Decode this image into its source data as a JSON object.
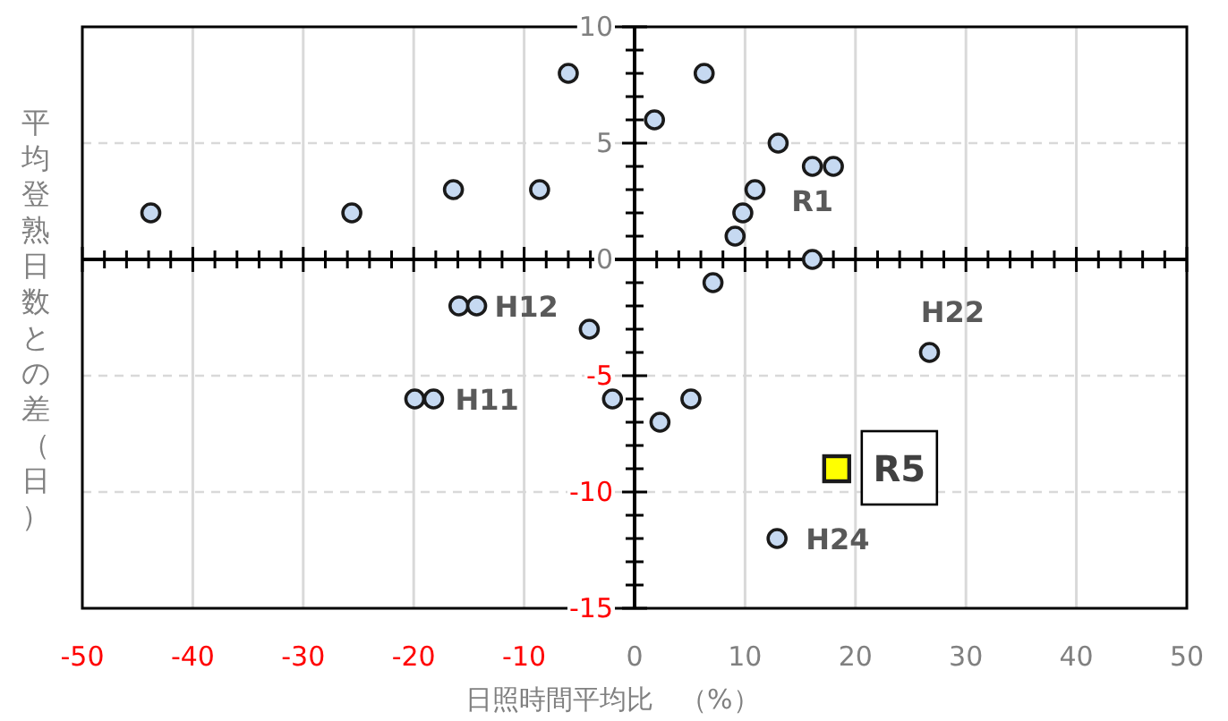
{
  "chart_data": {
    "type": "scatter",
    "xlabel": "日照時間平均比　（%）",
    "ylabel": "平均登熟日数との差（日）",
    "xlim": [
      -50,
      50
    ],
    "ylim": [
      -15,
      10
    ],
    "xticks": [
      -50,
      -40,
      -30,
      -20,
      -10,
      0,
      10,
      20,
      30,
      40,
      50
    ],
    "yticks": [
      -15,
      -10,
      -5,
      0,
      5,
      10
    ],
    "grid": true,
    "series": [
      {
        "color": "#c6d9f1",
        "marker": "circle",
        "x": [
          -43.8,
          -25.6,
          -16.4,
          -8.6,
          -6.0,
          6.3,
          1.8,
          13.0,
          16.1,
          18.0,
          10.9,
          9.8,
          9.1,
          16.1,
          7.1,
          -15.9,
          -14.3,
          -4.1,
          -19.9,
          -18.2,
          -2.0,
          2.3,
          5.1,
          26.7,
          12.9
        ],
        "values": [
          2,
          2,
          3,
          3,
          8,
          8,
          6,
          5,
          4,
          4,
          3,
          2,
          1,
          0,
          -1,
          -2,
          -2,
          -3,
          -6,
          -6,
          -6,
          -7,
          -6,
          -4,
          -12
        ]
      },
      {
        "name": "R5",
        "color": "#ffff00",
        "marker": "square",
        "x": [
          18.3
        ],
        "values": [
          -9
        ]
      }
    ],
    "annotations": [
      {
        "text": "R1",
        "x": 16.1,
        "y": 4
      },
      {
        "text": "H12",
        "x": -14.3,
        "y": -2
      },
      {
        "text": "H11",
        "x": -18.2,
        "y": -6
      },
      {
        "text": "H22",
        "x": 26.7,
        "y": -4
      },
      {
        "text": "H24",
        "x": 12.9,
        "y": -12
      }
    ]
  }
}
